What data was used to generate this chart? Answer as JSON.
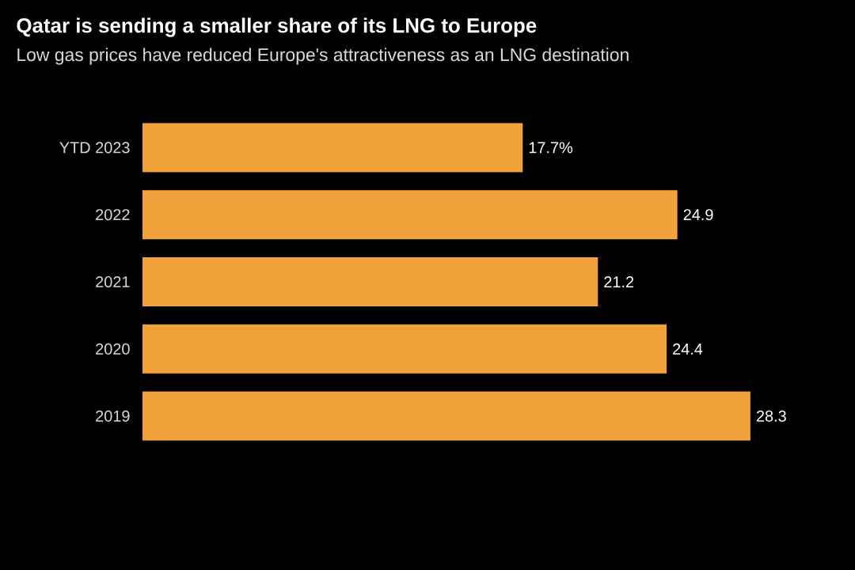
{
  "chart_data": {
    "type": "bar",
    "orientation": "horizontal",
    "title": "Qatar is sending a smaller share of its LNG to Europe",
    "subtitle": "Low gas prices have reduced Europe's attractiveness as an LNG destination",
    "categories": [
      "YTD 2023",
      "2022",
      "2021",
      "2020",
      "2019"
    ],
    "values": [
      17.7,
      24.9,
      21.2,
      24.4,
      28.3
    ],
    "value_labels": [
      "17.7%",
      "24.9",
      "21.2",
      "24.4",
      "28.3"
    ],
    "color": "#f2a23a"
  }
}
